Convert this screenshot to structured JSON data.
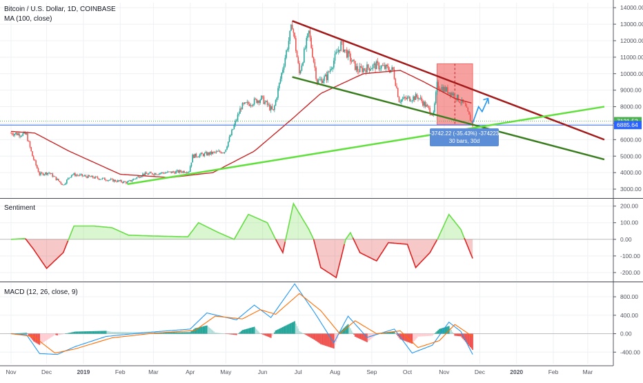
{
  "chart_data": [
    {
      "type": "candlestick",
      "title": "Bitcoin / U.S. Dollar, 1D, COINBASE",
      "indicator": "MA (100, close)",
      "y_ticks": [
        "14000.00",
        "13000.00",
        "12000.00",
        "11000.00",
        "10000.00",
        "9000.00",
        "8000.00",
        "7000.00",
        "6000.00",
        "5000.00",
        "4000.00",
        "3000.00"
      ],
      "ylim": [
        2500,
        14300
      ],
      "price_labels": [
        {
          "value": 7121.52,
          "text": "7121.52",
          "color": "#4caf50"
        },
        {
          "value": 6885.64,
          "text": "6885.64",
          "color": "#2962ff"
        }
      ],
      "measure": {
        "line1": "-3742.22 (-35.43%) -374223",
        "line2": "30 bars, 30d"
      },
      "price_keypoints": [
        {
          "date": "2018-11-01",
          "value": 6400
        },
        {
          "date": "2018-11-14",
          "value": 6300
        },
        {
          "date": "2018-11-19",
          "value": 5000
        },
        {
          "date": "2018-11-25",
          "value": 3900
        },
        {
          "date": "2018-12-03",
          "value": 4000
        },
        {
          "date": "2018-12-15",
          "value": 3250
        },
        {
          "date": "2018-12-22",
          "value": 3900
        },
        {
          "date": "2019-01-10",
          "value": 3700
        },
        {
          "date": "2019-02-07",
          "value": 3400
        },
        {
          "date": "2019-02-20",
          "value": 3900
        },
        {
          "date": "2019-03-31",
          "value": 4100
        },
        {
          "date": "2019-04-03",
          "value": 5000
        },
        {
          "date": "2019-04-30",
          "value": 5300
        },
        {
          "date": "2019-05-14",
          "value": 8000
        },
        {
          "date": "2019-05-31",
          "value": 8500
        },
        {
          "date": "2019-06-10",
          "value": 7700
        },
        {
          "date": "2019-06-26",
          "value": 13000
        },
        {
          "date": "2019-07-02",
          "value": 10000
        },
        {
          "date": "2019-07-10",
          "value": 12500
        },
        {
          "date": "2019-07-17",
          "value": 9500
        },
        {
          "date": "2019-07-25",
          "value": 9800
        },
        {
          "date": "2019-08-06",
          "value": 11800
        },
        {
          "date": "2019-08-20",
          "value": 10200
        },
        {
          "date": "2019-09-05",
          "value": 10500
        },
        {
          "date": "2019-09-19",
          "value": 10200
        },
        {
          "date": "2019-09-24",
          "value": 8400
        },
        {
          "date": "2019-10-10",
          "value": 8600
        },
        {
          "date": "2019-10-23",
          "value": 7500
        },
        {
          "date": "2019-10-26",
          "value": 9300
        },
        {
          "date": "2019-11-08",
          "value": 8800
        },
        {
          "date": "2019-11-18",
          "value": 8100
        },
        {
          "date": "2019-11-25",
          "value": 6900
        }
      ],
      "ma_keypoints": [
        {
          "date": "2018-11-01",
          "value": 6500
        },
        {
          "date": "2018-11-21",
          "value": 6400
        },
        {
          "date": "2018-12-20",
          "value": 5300
        },
        {
          "date": "2019-02-01",
          "value": 3900
        },
        {
          "date": "2019-03-15",
          "value": 3700
        },
        {
          "date": "2019-04-20",
          "value": 4000
        },
        {
          "date": "2019-05-25",
          "value": 5300
        },
        {
          "date": "2019-06-25",
          "value": 7200
        },
        {
          "date": "2019-07-20",
          "value": 8800
        },
        {
          "date": "2019-08-25",
          "value": 10000
        },
        {
          "date": "2019-09-25",
          "value": 10200
        },
        {
          "date": "2019-10-15",
          "value": 9500
        },
        {
          "date": "2019-11-10",
          "value": 8500
        },
        {
          "date": "2019-11-25",
          "value": 8200
        }
      ],
      "trendlines": [
        {
          "name": "upper-channel",
          "color": "#a31a1a",
          "from": {
            "date": "2019-06-26",
            "value": 13200
          },
          "to": {
            "date": "2020-03-15",
            "value": 6000
          }
        },
        {
          "name": "lower-channel",
          "color": "#3a7d1f",
          "from": {
            "date": "2019-06-26",
            "value": 9800
          },
          "to": {
            "date": "2020-03-15",
            "value": 4800
          }
        },
        {
          "name": "support-line",
          "color": "#5fe03a",
          "from": {
            "date": "2019-02-07",
            "value": 3300
          },
          "to": {
            "date": "2020-03-15",
            "value": 8000
          }
        }
      ],
      "range_box": {
        "from": "2019-10-26",
        "to": "2019-11-25",
        "high": 10600,
        "low": 6900
      },
      "horizontal_lines": [
        7121.52,
        6885.64
      ],
      "arrow": [
        {
          "date": "2019-11-25",
          "value": 7000
        },
        {
          "date": "2019-11-30",
          "value": 8000
        },
        {
          "date": "2019-12-03",
          "value": 7700
        },
        {
          "date": "2019-12-08",
          "value": 8500
        }
      ]
    },
    {
      "type": "area",
      "title": "Sentiment",
      "y_ticks": [
        "200.00",
        "100.00",
        "0.00",
        "-100.00",
        "-200.00"
      ],
      "ylim": [
        -250,
        240
      ],
      "keypoints": [
        {
          "date": "2018-11-01",
          "value": 0
        },
        {
          "date": "2018-11-13",
          "value": 5
        },
        {
          "date": "2018-11-20",
          "value": -60
        },
        {
          "date": "2018-12-01",
          "value": -175
        },
        {
          "date": "2018-12-15",
          "value": -80
        },
        {
          "date": "2018-12-24",
          "value": 80
        },
        {
          "date": "2019-01-10",
          "value": 80
        },
        {
          "date": "2019-01-25",
          "value": 70
        },
        {
          "date": "2019-02-08",
          "value": 25
        },
        {
          "date": "2019-03-01",
          "value": 20
        },
        {
          "date": "2019-03-30",
          "value": 15
        },
        {
          "date": "2019-04-08",
          "value": 100
        },
        {
          "date": "2019-04-25",
          "value": 40
        },
        {
          "date": "2019-05-08",
          "value": 0
        },
        {
          "date": "2019-05-20",
          "value": 150
        },
        {
          "date": "2019-06-05",
          "value": 100
        },
        {
          "date": "2019-06-12",
          "value": 0
        },
        {
          "date": "2019-06-18",
          "value": -80
        },
        {
          "date": "2019-06-27",
          "value": 215
        },
        {
          "date": "2019-07-10",
          "value": 60
        },
        {
          "date": "2019-07-14",
          "value": 0
        },
        {
          "date": "2019-07-20",
          "value": -170
        },
        {
          "date": "2019-08-02",
          "value": -230
        },
        {
          "date": "2019-08-10",
          "value": 0
        },
        {
          "date": "2019-08-14",
          "value": 40
        },
        {
          "date": "2019-08-22",
          "value": -80
        },
        {
          "date": "2019-09-05",
          "value": -130
        },
        {
          "date": "2019-09-15",
          "value": -20
        },
        {
          "date": "2019-10-01",
          "value": -30
        },
        {
          "date": "2019-10-08",
          "value": -170
        },
        {
          "date": "2019-10-20",
          "value": -80
        },
        {
          "date": "2019-10-27",
          "value": 10
        },
        {
          "date": "2019-11-05",
          "value": 150
        },
        {
          "date": "2019-11-15",
          "value": 60
        },
        {
          "date": "2019-11-25",
          "value": -115
        }
      ]
    },
    {
      "type": "line",
      "title": "MACD (12, 26, close, 9)",
      "y_ticks": [
        "800.00",
        "400.00",
        "0.00",
        "-400.00"
      ],
      "ylim": [
        -650,
        1100
      ],
      "macd_keypoints": [
        {
          "date": "2018-11-01",
          "value": 0
        },
        {
          "date": "2018-11-14",
          "value": -20
        },
        {
          "date": "2018-11-25",
          "value": -430
        },
        {
          "date": "2018-12-10",
          "value": -450
        },
        {
          "date": "2018-12-25",
          "value": -280
        },
        {
          "date": "2019-01-20",
          "value": -60
        },
        {
          "date": "2019-02-20",
          "value": 20
        },
        {
          "date": "2019-04-01",
          "value": 100
        },
        {
          "date": "2019-04-15",
          "value": 450
        },
        {
          "date": "2019-05-10",
          "value": 300
        },
        {
          "date": "2019-05-25",
          "value": 620
        },
        {
          "date": "2019-06-08",
          "value": 350
        },
        {
          "date": "2019-06-28",
          "value": 1080
        },
        {
          "date": "2019-07-15",
          "value": 450
        },
        {
          "date": "2019-07-31",
          "value": -200
        },
        {
          "date": "2019-08-12",
          "value": 380
        },
        {
          "date": "2019-08-28",
          "value": -80
        },
        {
          "date": "2019-09-20",
          "value": 100
        },
        {
          "date": "2019-10-05",
          "value": -420
        },
        {
          "date": "2019-10-22",
          "value": -250
        },
        {
          "date": "2019-11-05",
          "value": 250
        },
        {
          "date": "2019-11-15",
          "value": 50
        },
        {
          "date": "2019-11-25",
          "value": -450
        }
      ],
      "signal_keypoints": [
        {
          "date": "2018-11-01",
          "value": 0
        },
        {
          "date": "2018-11-20",
          "value": -60
        },
        {
          "date": "2018-12-08",
          "value": -420
        },
        {
          "date": "2018-12-25",
          "value": -330
        },
        {
          "date": "2019-01-25",
          "value": -90
        },
        {
          "date": "2019-03-01",
          "value": 10
        },
        {
          "date": "2019-04-05",
          "value": 70
        },
        {
          "date": "2019-04-22",
          "value": 380
        },
        {
          "date": "2019-05-15",
          "value": 320
        },
        {
          "date": "2019-05-30",
          "value": 520
        },
        {
          "date": "2019-06-12",
          "value": 420
        },
        {
          "date": "2019-07-02",
          "value": 870
        },
        {
          "date": "2019-07-20",
          "value": 500
        },
        {
          "date": "2019-08-05",
          "value": 0
        },
        {
          "date": "2019-08-18",
          "value": 280
        },
        {
          "date": "2019-09-05",
          "value": 0
        },
        {
          "date": "2019-09-25",
          "value": 60
        },
        {
          "date": "2019-10-10",
          "value": -300
        },
        {
          "date": "2019-10-28",
          "value": -150
        },
        {
          "date": "2019-11-10",
          "value": 200
        },
        {
          "date": "2019-11-25",
          "value": -60
        }
      ]
    }
  ],
  "x_ticks": [
    {
      "date": "2018-11-01",
      "label": "Nov"
    },
    {
      "date": "2018-12-01",
      "label": "Dec"
    },
    {
      "date": "2019-01-01",
      "label": "2019"
    },
    {
      "date": "2019-02-01",
      "label": "Feb"
    },
    {
      "date": "2019-03-01",
      "label": "Mar"
    },
    {
      "date": "2019-04-01",
      "label": "Apr"
    },
    {
      "date": "2019-05-01",
      "label": "May"
    },
    {
      "date": "2019-06-01",
      "label": "Jun"
    },
    {
      "date": "2019-07-01",
      "label": "Jul"
    },
    {
      "date": "2019-08-01",
      "label": "Aug"
    },
    {
      "date": "2019-09-01",
      "label": "Sep"
    },
    {
      "date": "2019-10-01",
      "label": "Oct"
    },
    {
      "date": "2019-11-01",
      "label": "Nov"
    },
    {
      "date": "2019-12-01",
      "label": "Dec"
    },
    {
      "date": "2020-01-01",
      "label": "2020"
    },
    {
      "date": "2020-02-01",
      "label": "Feb"
    },
    {
      "date": "2020-03-01",
      "label": "Mar"
    }
  ],
  "colors": {
    "up": "#26a69a",
    "down": "#ef5350",
    "ma": "#c62828",
    "sent_pos": "#66dd44",
    "sent_neg": "#dd2222",
    "macd": "#2196f3",
    "signal": "#ff6d00",
    "hist_up_strong": "#26a69a",
    "hist_up_weak": "#b2dfdb",
    "hist_down_strong": "#ef5350",
    "hist_down_weak": "#ffcdd2"
  }
}
